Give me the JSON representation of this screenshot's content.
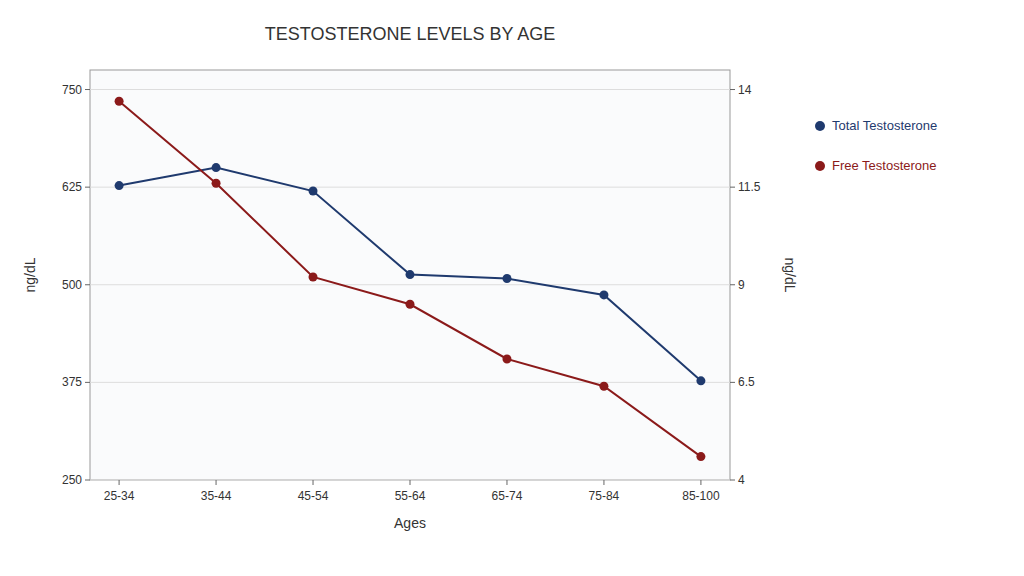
{
  "chart_data": {
    "type": "line",
    "title": "TESTOSTERONE LEVELS BY AGE",
    "x_label": "Ages",
    "y_label": "ng/dL",
    "y2_label": "ng/dL",
    "categories": [
      "25-34",
      "35-44",
      "45-54",
      "55-64",
      "65-74",
      "75-84",
      "85-100"
    ],
    "series": [
      {
        "name": "Total Testosterone",
        "color": "#1f3a6e",
        "marker": "circle",
        "values": [
          627,
          650,
          620,
          513,
          508,
          487,
          377
        ]
      },
      {
        "name": "Free Testosterone",
        "color": "#8b1a1a",
        "marker": "circle",
        "axis": "y2",
        "values": [
          13.7,
          11.6,
          9.2,
          8.5,
          7.1,
          6.4,
          4.6
        ]
      }
    ],
    "ylim": [
      250,
      775
    ],
    "yticks": [
      250,
      375,
      500,
      625,
      750
    ],
    "y2lim": [
      4,
      14.5
    ],
    "y2ticks": [
      4,
      6.5,
      9,
      11.5,
      14
    ],
    "grid": true,
    "legend": "right"
  }
}
